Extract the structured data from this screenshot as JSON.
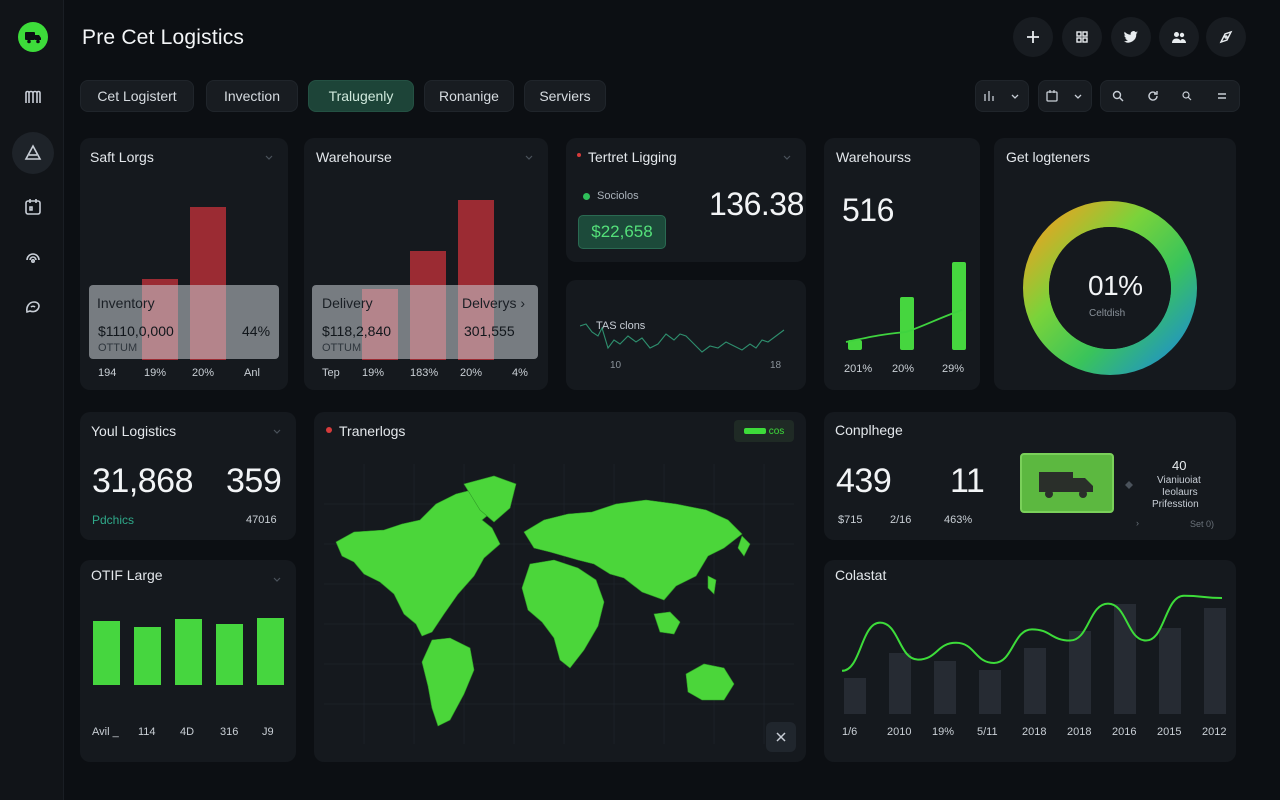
{
  "app": {
    "title": "Pre Cet Logistics"
  },
  "tabs": [
    {
      "label": "Cet Logistert"
    },
    {
      "label": "Invection"
    },
    {
      "label": "Tralugenly"
    },
    {
      "label": "Ronanige"
    },
    {
      "label": "Serviers"
    }
  ],
  "colors": {
    "accent": "#3ddc3a",
    "bar_red": "#9b2b33",
    "bar_green": "#46d63f",
    "bar_dark": "#262b33",
    "tab_active": "#1d4438"
  },
  "icons": {
    "logo": "truck-logo-icon",
    "sidebar": [
      "menu-icon",
      "triangle-icon",
      "calendar-icon",
      "headset-icon",
      "chat-icon"
    ],
    "top": [
      "plus-icon",
      "grid-icon",
      "twitter-icon",
      "users-icon",
      "compass-icon"
    ]
  },
  "card_saft": {
    "title": "Saft Lorgs",
    "overlay_title": "Inventory",
    "overlay_value": "$1110,0,000",
    "overlay_pct": "44%",
    "overlay_sub": "OTTUM",
    "x_labels": [
      "194",
      "19%",
      "20%",
      "Anl"
    ],
    "bar_values": [
      0.45,
      0.85
    ]
  },
  "card_warehouse": {
    "title": "Warehourse",
    "overlay_left_title": "Delivery",
    "overlay_left_value": "$118,2,840",
    "overlay_left_sub": "OTTUM",
    "overlay_right_title": "Delverys",
    "overlay_right_value": "301,555",
    "x_labels": [
      "Tep",
      "19%",
      "183%",
      "20%",
      "4%"
    ],
    "bar_values": [
      0.42,
      0.65,
      0.95
    ]
  },
  "card_tertret": {
    "title": "Tertret Ligging",
    "legend": "Sociolos",
    "badge": "$22,658",
    "value": "136.38"
  },
  "card_trend": {
    "label": "TAS clons",
    "x_labels": [
      "10",
      "18"
    ]
  },
  "card_warehourss": {
    "title": "Warehourss",
    "value": "516",
    "x_labels": [
      "201%",
      "20%",
      "29%"
    ],
    "bar_values": [
      0.1,
      0.55,
      0.92
    ]
  },
  "card_donut": {
    "title": "Get logteners",
    "value": "01%",
    "sub": "Celtdish"
  },
  "card_total": {
    "title": "Youl Logistics",
    "value_a": "31,868",
    "value_b": "359",
    "sub_a": "Pdchics",
    "sub_b": "47016"
  },
  "card_map": {
    "title": "Tranerlogs",
    "badge": "cos"
  },
  "card_compliance": {
    "title": "Conplhege",
    "value_a": "439",
    "value_b": "11",
    "sub_1": "$715",
    "sub_2": "2/16",
    "sub_3": "463%",
    "side_num": "40",
    "side_lines": [
      "Vianiuoiat",
      "Ieolaurs",
      "Prifesstion"
    ],
    "link": "Set 0)"
  },
  "card_otif": {
    "title": "OTIF Large",
    "x_labels": [
      "Avil _",
      "114",
      "4D",
      "316",
      "J9"
    ],
    "bar_values": [
      0.8,
      0.72,
      0.82,
      0.76,
      0.84
    ]
  },
  "card_colastat": {
    "title": "Colastat",
    "x_labels": [
      "1/6",
      "2010",
      "19%",
      "5/11",
      "2018",
      "2018",
      "2016",
      "2015",
      "2012"
    ],
    "bar_values": [
      0.33,
      0.55,
      0.48,
      0.4,
      0.6,
      0.75,
      1.0,
      0.78,
      0.96
    ],
    "line_values": [
      0.35,
      0.78,
      0.45,
      0.6,
      0.42,
      0.72,
      0.62,
      0.95,
      0.62,
      1.02,
      1.0
    ]
  }
}
